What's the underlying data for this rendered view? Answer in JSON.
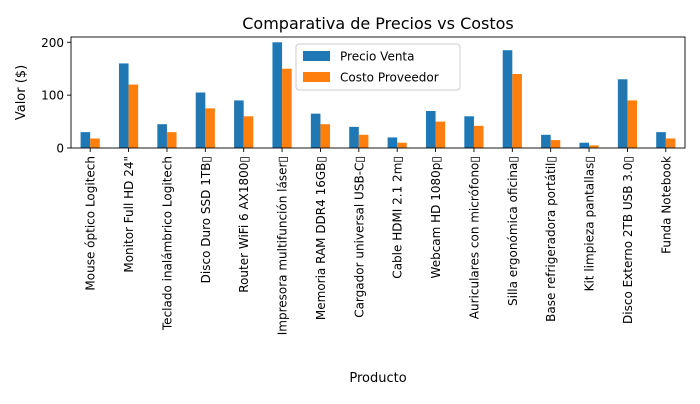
{
  "chart_data": {
    "type": "bar",
    "title": "Comparativa de Precios vs Costos",
    "xlabel": "Producto",
    "ylabel": "Valor ($)",
    "ylim": [
      0,
      210
    ],
    "yticks": [
      0,
      100,
      200
    ],
    "grid": false,
    "legend_position": "top-center",
    "categories": [
      "Mouse óptico Logitech",
      "Monitor Full HD 24\"",
      "Teclado inalámbrico Logitech",
      "Disco Duro SSD 1TB▯",
      "Router WiFi 6 AX1800▯",
      "Impresora multifunción láser▯",
      "Memoria RAM DDR4 16GB▯",
      "Cargador universal USB-C▯",
      "Cable HDMI 2.1 2m▯",
      "Webcam HD 1080p▯",
      "Auriculares con micrófono▯",
      "Silla ergonómica oficina▯",
      "Base refrigeradora portátil▯",
      "Kit limpieza pantallas▯",
      "Disco Externo 2TB USB 3.0▯",
      "Funda Notebook"
    ],
    "series": [
      {
        "name": "Precio Venta",
        "color": "#1f77b4",
        "values": [
          30,
          160,
          45,
          105,
          90,
          200,
          65,
          40,
          20,
          70,
          60,
          185,
          25,
          10,
          130,
          30
        ]
      },
      {
        "name": "Costo Proveedor",
        "color": "#ff7f0e",
        "values": [
          18,
          120,
          30,
          75,
          60,
          150,
          45,
          25,
          10,
          50,
          42,
          140,
          15,
          5,
          90,
          18
        ]
      }
    ]
  }
}
